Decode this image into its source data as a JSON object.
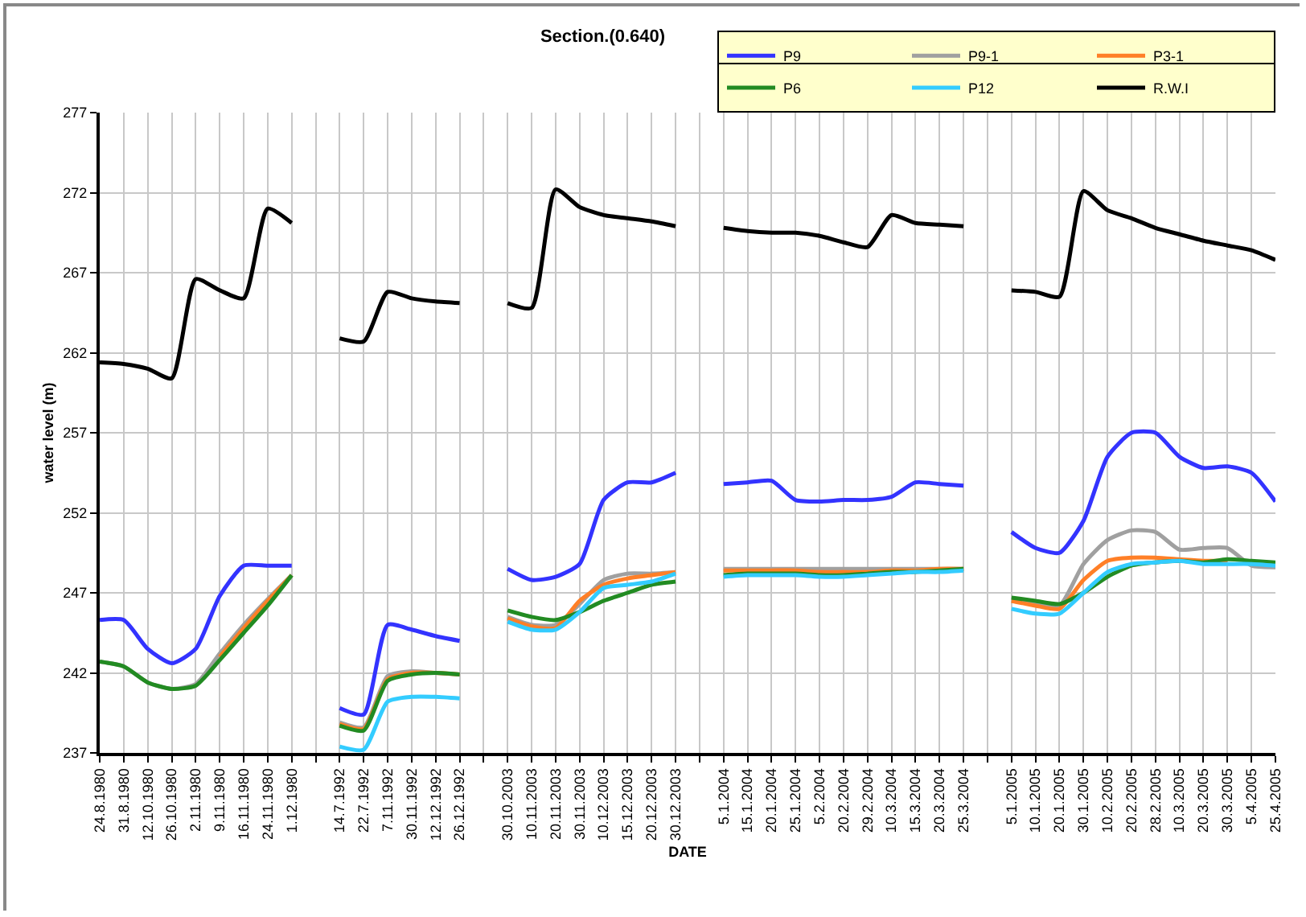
{
  "chart_data": {
    "type": "line",
    "title": "Section.(0.640)",
    "xlabel": "DATE",
    "ylabel": "water level (m)",
    "categories": [
      "24.8.1980",
      "31.8.1980",
      "12.10.1980",
      "26.10.1980",
      "2.11.1980",
      "9.11.1980",
      "16.11.1980",
      "24.11.1980",
      "1.12.1980",
      null,
      "14.7.1992",
      "22.7.1992",
      "7.11.1992",
      "30.11.1992",
      "12.12.1992",
      "26.12.1992",
      null,
      "30.10.2003",
      "10.11.2003",
      "20.11.2003",
      "30.11.2003",
      "10.12.2003",
      "15.12.2003",
      "20.12.2003",
      "30.12.2003",
      null,
      "5.1.2004",
      "15.1.2004",
      "20.1.2004",
      "25.1.2004",
      "5.2.2004",
      "20.2.2004",
      "29.2.2004",
      "10.3.2004",
      "15.3.2004",
      "20.3.2004",
      "25.3.2004",
      null,
      "5.1.2005",
      "10.1.2005",
      "20.1.2005",
      "30.1.2005",
      "10.2.2005",
      "20.2.2005",
      "28.2.2005",
      "10.3.2005",
      "20.3.2005",
      "30.3.2005",
      "5.4.2005",
      "25.4.2005"
    ],
    "series": [
      {
        "name": "P9",
        "color": "#3333ff",
        "values": [
          245.3,
          245.3,
          243.5,
          242.6,
          243.5,
          246.8,
          248.7,
          248.7,
          248.7,
          null,
          239.8,
          239.4,
          245.0,
          244.7,
          244.3,
          244.0,
          null,
          248.5,
          247.8,
          248.0,
          248.8,
          252.8,
          253.9,
          253.9,
          254.5,
          null,
          253.8,
          253.9,
          254.0,
          252.8,
          252.7,
          252.8,
          252.8,
          253.0,
          253.9,
          253.8,
          253.7,
          null,
          250.8,
          249.8,
          249.5,
          251.5,
          255.5,
          257.0,
          257.0,
          255.5,
          254.8,
          254.9,
          254.5,
          252.7
        ]
      },
      {
        "name": "P9-1",
        "color": "#a0a0a0",
        "values": [
          242.7,
          242.4,
          241.4,
          241.0,
          241.3,
          243.2,
          245.0,
          246.6,
          248.1,
          null,
          238.9,
          238.6,
          241.8,
          242.1,
          242.0,
          241.9,
          null,
          245.5,
          245.0,
          245.0,
          246.3,
          247.8,
          248.2,
          248.2,
          248.3,
          null,
          248.5,
          248.5,
          248.5,
          248.5,
          248.5,
          248.5,
          248.5,
          248.5,
          248.5,
          248.5,
          248.5,
          null,
          246.5,
          246.3,
          246.2,
          248.8,
          250.3,
          250.9,
          250.8,
          249.7,
          249.8,
          249.8,
          248.7,
          248.6
        ]
      },
      {
        "name": "P3-1",
        "color": "#ff7f27",
        "values": [
          null,
          null,
          null,
          null,
          null,
          243.0,
          244.8,
          246.5,
          248.1,
          null,
          238.8,
          238.5,
          241.6,
          242.0,
          242.0,
          241.9,
          null,
          245.4,
          244.9,
          244.8,
          246.5,
          247.5,
          247.9,
          248.1,
          248.3,
          null,
          248.4,
          248.4,
          248.4,
          248.4,
          248.3,
          248.3,
          248.3,
          248.4,
          248.4,
          248.5,
          248.5,
          null,
          246.5,
          246.2,
          246.0,
          247.8,
          249.0,
          249.2,
          249.2,
          249.1,
          249.0,
          249.0,
          null,
          null
        ]
      },
      {
        "name": "P6",
        "color": "#228b22",
        "values": [
          242.7,
          242.4,
          241.4,
          241.0,
          241.2,
          242.8,
          244.5,
          246.2,
          248.1,
          null,
          238.7,
          238.4,
          241.5,
          241.9,
          242.0,
          241.9,
          null,
          245.9,
          245.5,
          245.3,
          245.8,
          246.5,
          247.0,
          247.5,
          247.7,
          null,
          248.1,
          248.2,
          248.2,
          248.2,
          248.1,
          248.1,
          248.2,
          248.3,
          248.3,
          248.4,
          248.5,
          null,
          246.7,
          246.5,
          246.3,
          247.0,
          248.0,
          248.7,
          248.9,
          249.0,
          248.9,
          249.1,
          249.0,
          248.9
        ]
      },
      {
        "name": "P12",
        "color": "#33ccff",
        "values": [
          null,
          null,
          null,
          null,
          null,
          null,
          null,
          null,
          null,
          null,
          237.4,
          237.2,
          240.2,
          240.5,
          240.5,
          240.4,
          null,
          245.2,
          244.7,
          244.7,
          245.8,
          247.3,
          247.5,
          247.7,
          248.2,
          null,
          248.0,
          248.1,
          248.1,
          248.1,
          248.0,
          248.0,
          248.1,
          248.2,
          248.3,
          248.3,
          248.4,
          null,
          246.0,
          245.7,
          245.7,
          247.0,
          248.3,
          248.8,
          248.9,
          249.0,
          248.8,
          248.8,
          248.8,
          248.7
        ]
      },
      {
        "name": "R.W.I",
        "color": "#000000",
        "values": [
          261.4,
          261.3,
          261.0,
          260.4,
          266.6,
          265.9,
          265.4,
          271.0,
          270.1,
          null,
          262.9,
          262.7,
          265.8,
          265.4,
          265.2,
          265.1,
          null,
          265.1,
          264.8,
          272.2,
          271.1,
          270.6,
          270.4,
          270.2,
          269.9,
          null,
          269.8,
          269.6,
          269.5,
          269.5,
          269.3,
          268.9,
          268.6,
          270.6,
          270.1,
          270.0,
          269.9,
          null,
          265.9,
          265.8,
          265.5,
          272.1,
          270.9,
          270.4,
          269.8,
          269.4,
          269.0,
          268.7,
          268.4,
          267.8
        ]
      }
    ],
    "ylim": [
      237,
      277
    ],
    "yticks": [
      237,
      242,
      247,
      252,
      257,
      262,
      267,
      272,
      277
    ],
    "grid": true,
    "legend": "top right",
    "marker": "none",
    "line_style": "solid"
  }
}
